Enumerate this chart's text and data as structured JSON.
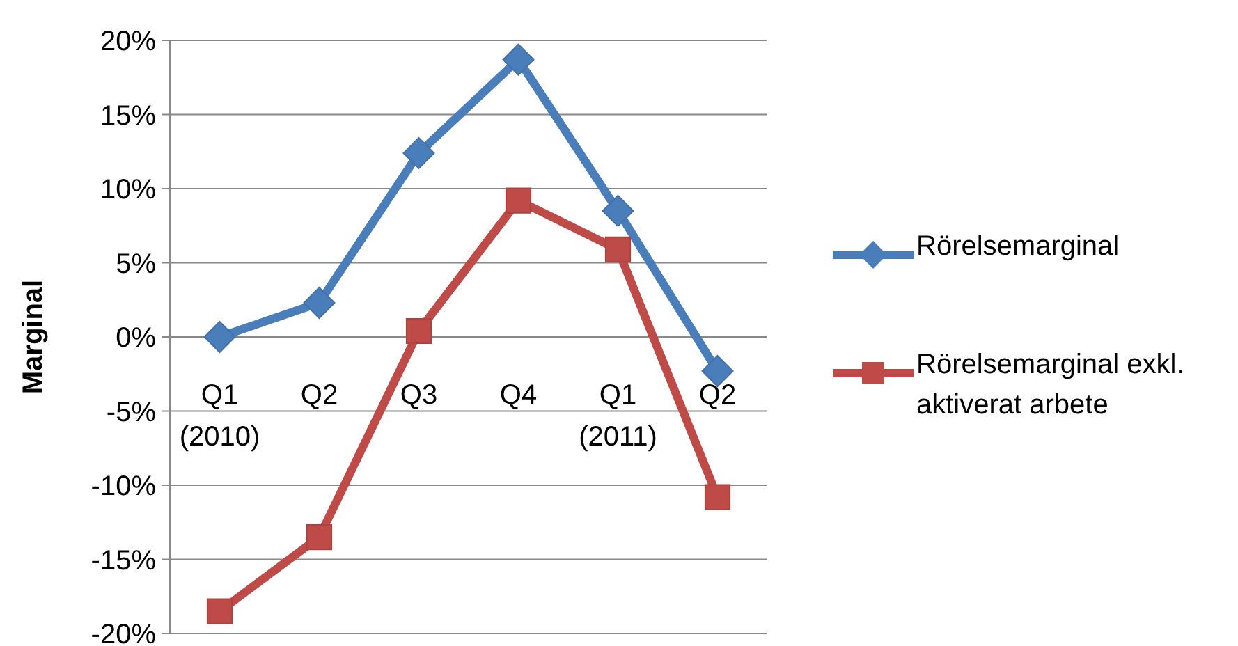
{
  "chart_data": {
    "type": "line",
    "ylabel": "Marginal",
    "categories": [
      "Q1\n(2010)",
      "Q2",
      "Q3",
      "Q4",
      "Q1\n(2011)",
      "Q2"
    ],
    "series": [
      {
        "name": "Rörelsemarginal",
        "color": "#4a7ebb",
        "marker": "diamond",
        "values": [
          0,
          2.3,
          12.4,
          18.7,
          8.5,
          -2.3
        ]
      },
      {
        "name": "Rörelsemarginal exkl. aktiverat arbete",
        "color": "#be4b48",
        "marker": "square",
        "values": [
          -18.5,
          -13.5,
          0.4,
          9.2,
          5.9,
          -10.8
        ]
      }
    ],
    "ylim": [
      -20,
      20
    ],
    "yticks": [
      {
        "value": -20,
        "label": "-20%"
      },
      {
        "value": -15,
        "label": "-15%"
      },
      {
        "value": -10,
        "label": "-10%"
      },
      {
        "value": -5,
        "label": "-5%"
      },
      {
        "value": 0,
        "label": "0%"
      },
      {
        "value": 5,
        "label": "5%"
      },
      {
        "value": 10,
        "label": "10%"
      },
      {
        "value": 15,
        "label": "15%"
      },
      {
        "value": 20,
        "label": "20%"
      }
    ],
    "grid": "y",
    "legend": "right",
    "line_style": "solid"
  }
}
